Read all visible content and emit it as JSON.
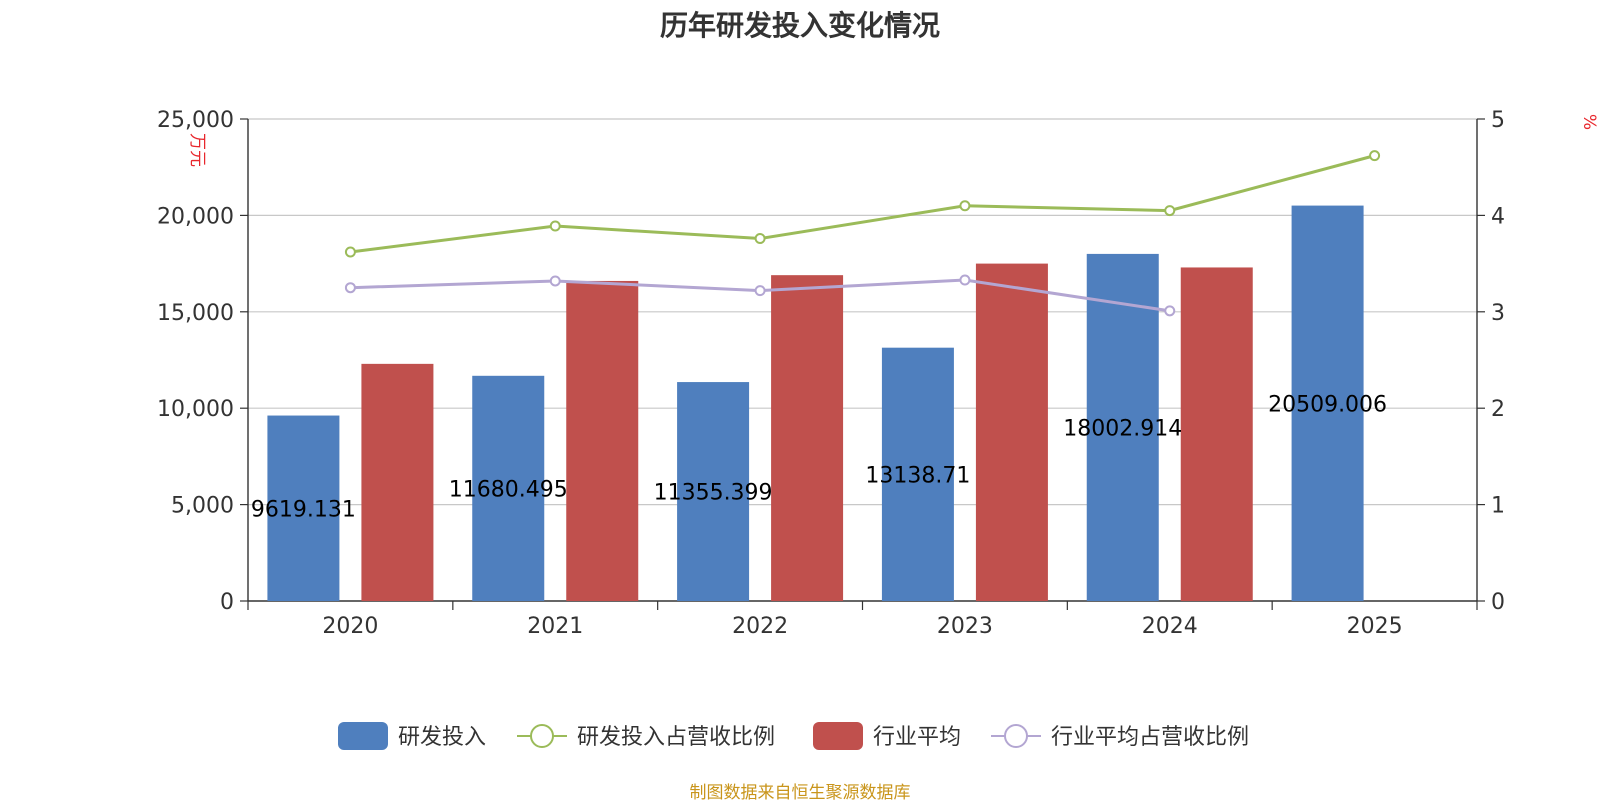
{
  "chart_data": {
    "type": "bar",
    "title": "历年研发投入变化情况",
    "categories": [
      "2020",
      "2021",
      "2022",
      "2023",
      "2024",
      "2025"
    ],
    "left_axis": {
      "unit": "万元",
      "min": 0,
      "max": 25000,
      "ticks": [
        "0",
        "5,000",
        "10,000",
        "15,000",
        "20,000",
        "25,000"
      ],
      "tick_values": [
        0,
        5000,
        10000,
        15000,
        20000,
        25000
      ]
    },
    "right_axis": {
      "unit": "%",
      "min": 0,
      "max": 5,
      "ticks": [
        "0",
        "1",
        "2",
        "3",
        "4",
        "5"
      ],
      "tick_values": [
        0,
        1,
        2,
        3,
        4,
        5
      ]
    },
    "series": [
      {
        "name": "研发投入",
        "type": "bar",
        "axis": "left",
        "color": "#4f7fbe",
        "values": [
          9619.131,
          11680.495,
          11355.399,
          13138.71,
          18002.914,
          20509.006
        ],
        "labels": [
          "9619.131",
          "11680.495",
          "11355.399",
          "13138.71",
          "18002.914",
          "20509.006"
        ]
      },
      {
        "name": "研发投入占营收比例",
        "type": "line",
        "axis": "right",
        "color": "#9bbb59",
        "values": [
          3.62,
          3.89,
          3.76,
          4.1,
          4.05,
          4.62
        ]
      },
      {
        "name": "行业平均",
        "type": "bar",
        "axis": "left",
        "color": "#c0504d",
        "values": [
          12300,
          16600,
          16900,
          17500,
          17300,
          null
        ]
      },
      {
        "name": "行业平均占营收比例",
        "type": "line",
        "axis": "right",
        "color": "#b3a6d2",
        "values": [
          3.25,
          3.32,
          3.22,
          3.33,
          3.01,
          null
        ]
      }
    ],
    "grid": true,
    "legend": "bottom"
  },
  "source": "制图数据来自恒生聚源数据库"
}
